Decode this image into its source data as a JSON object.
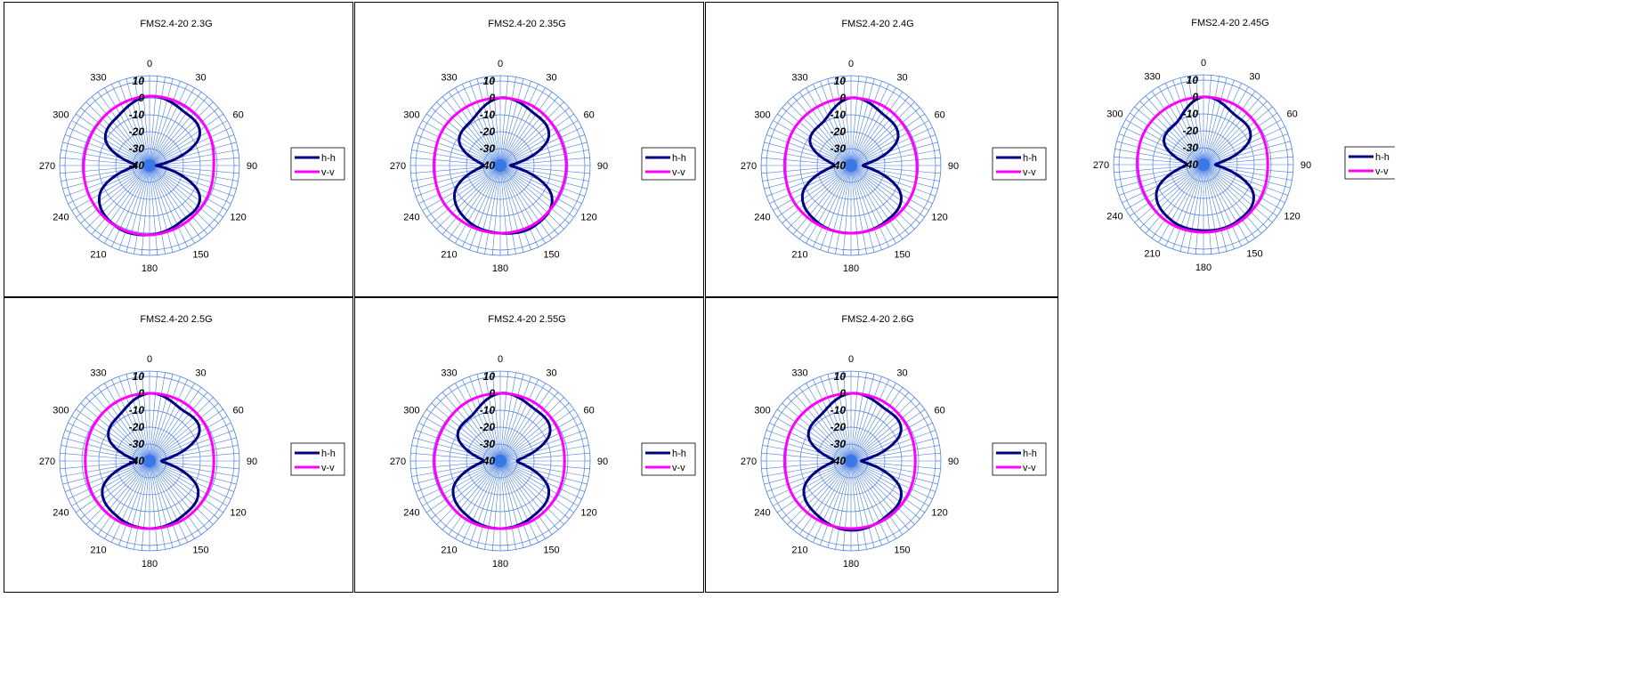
{
  "chart_data": [
    {
      "type": "polar-line",
      "title": "FMS2.4-20 2.3G",
      "angle_ticks": [
        "0",
        "30",
        "60",
        "90",
        "120",
        "150",
        "180",
        "210",
        "240",
        "270",
        "300",
        "330"
      ],
      "radial_ticks": [
        "10",
        "0",
        "-10",
        "-20",
        "-30",
        "-40"
      ],
      "radial_range": [
        -40,
        10
      ],
      "radial_step": 10,
      "angle_direction": "clockwise",
      "grid": true,
      "legend_position": "right",
      "colors": {
        "h-h": "#000080",
        "v-v": "#ff00ff"
      },
      "series": [
        {
          "name": "h-h",
          "angles": [
            0,
            30,
            60,
            90,
            120,
            150,
            180,
            210,
            240,
            270,
            300,
            330
          ],
          "values": [
            1,
            -2,
            -6,
            -36,
            -6,
            -2,
            1,
            1,
            -6,
            -32,
            -10,
            -5
          ]
        },
        {
          "name": "v-v",
          "angles": [
            0,
            30,
            60,
            90,
            120,
            150,
            180,
            210,
            240,
            270,
            300,
            330
          ],
          "values": [
            1,
            1,
            0,
            -2,
            -1,
            0,
            1,
            1,
            0,
            -1,
            -1,
            0
          ]
        }
      ]
    },
    {
      "type": "polar-line",
      "title": "FMS2.4-20 2.35G",
      "angle_ticks": [
        "0",
        "30",
        "60",
        "90",
        "120",
        "150",
        "180",
        "210",
        "240",
        "270",
        "300",
        "330"
      ],
      "radial_ticks": [
        "10",
        "0",
        "-10",
        "-20",
        "-30",
        "-40"
      ],
      "radial_range": [
        -40,
        10
      ],
      "radial_step": 10,
      "angle_direction": "clockwise",
      "grid": true,
      "legend_position": "right",
      "colors": {
        "h-h": "#000080",
        "v-v": "#ff00ff"
      },
      "series": [
        {
          "name": "h-h",
          "angles": [
            0,
            30,
            60,
            90,
            120,
            150,
            180,
            210,
            240,
            270,
            300,
            330
          ],
          "values": [
            0,
            -3,
            -7,
            -34,
            -5,
            1,
            0,
            -2,
            -9,
            -30,
            -12,
            -8
          ]
        },
        {
          "name": "v-v",
          "angles": [
            0,
            30,
            60,
            90,
            120,
            150,
            180,
            210,
            240,
            270,
            300,
            330
          ],
          "values": [
            0,
            0,
            -1,
            -1,
            -1,
            0,
            0,
            0,
            0,
            -1,
            0,
            0
          ]
        }
      ]
    },
    {
      "type": "polar-line",
      "title": "FMS2.4-20 2.4G",
      "angle_ticks": [
        "0",
        "30",
        "60",
        "90",
        "120",
        "150",
        "180",
        "210",
        "240",
        "270",
        "300",
        "330"
      ],
      "radial_ticks": [
        "10",
        "0",
        "-10",
        "-20",
        "-30",
        "-40"
      ],
      "radial_range": [
        -40,
        10
      ],
      "radial_step": 10,
      "angle_direction": "clockwise",
      "grid": true,
      "legend_position": "right",
      "colors": {
        "h-h": "#000080",
        "v-v": "#ff00ff"
      },
      "series": [
        {
          "name": "h-h",
          "angles": [
            0,
            30,
            60,
            90,
            120,
            150,
            180,
            210,
            240,
            270,
            300,
            330
          ],
          "values": [
            0,
            -4,
            -8,
            -33,
            -6,
            -1,
            0,
            -1,
            -7,
            -30,
            -12,
            -9
          ]
        },
        {
          "name": "v-v",
          "angles": [
            0,
            30,
            60,
            90,
            120,
            150,
            180,
            210,
            240,
            270,
            300,
            330
          ],
          "values": [
            0,
            0,
            -1,
            -1,
            0,
            0,
            0,
            0,
            0,
            -1,
            0,
            0
          ]
        }
      ]
    },
    {
      "type": "polar-line",
      "title": "FMS2.4-20 2.45G",
      "angle_ticks": [
        "0",
        "30",
        "60",
        "90",
        "120",
        "150",
        "180",
        "210",
        "240",
        "270",
        "300",
        "330"
      ],
      "radial_ticks": [
        "10",
        "0",
        "-10",
        "-20",
        "-30",
        "-40"
      ],
      "radial_range": [
        -40,
        10
      ],
      "radial_step": 10,
      "angle_direction": "clockwise",
      "grid": true,
      "legend_position": "right",
      "colors": {
        "h-h": "#000080",
        "v-v": "#ff00ff"
      },
      "series": [
        {
          "name": "h-h",
          "angles": [
            0,
            30,
            60,
            90,
            120,
            150,
            180,
            210,
            240,
            270,
            300,
            330
          ],
          "values": [
            0,
            -5,
            -8,
            -33,
            -6,
            -1,
            -1,
            -2,
            -8,
            -30,
            -13,
            -10
          ]
        },
        {
          "name": "v-v",
          "angles": [
            0,
            30,
            60,
            90,
            120,
            150,
            180,
            210,
            240,
            270,
            300,
            330
          ],
          "values": [
            0,
            0,
            -1,
            -2,
            -1,
            0,
            0,
            0,
            -1,
            -1,
            0,
            0
          ]
        }
      ]
    },
    {
      "type": "polar-line",
      "title": "FMS2.4-20 2.5G",
      "angle_ticks": [
        "0",
        "30",
        "60",
        "90",
        "120",
        "150",
        "180",
        "210",
        "240",
        "270",
        "300",
        "330"
      ],
      "radial_ticks": [
        "10",
        "0",
        "-10",
        "-20",
        "-30",
        "-40"
      ],
      "radial_range": [
        -40,
        10
      ],
      "radial_step": 10,
      "angle_direction": "clockwise",
      "grid": true,
      "legend_position": "right",
      "colors": {
        "h-h": "#000080",
        "v-v": "#ff00ff"
      },
      "series": [
        {
          "name": "h-h",
          "angles": [
            0,
            30,
            60,
            90,
            120,
            150,
            180,
            210,
            240,
            270,
            300,
            330
          ],
          "values": [
            0,
            -4,
            -6,
            -33,
            -7,
            -2,
            0,
            -2,
            -8,
            -32,
            -12,
            -7
          ]
        },
        {
          "name": "v-v",
          "angles": [
            0,
            30,
            60,
            90,
            120,
            150,
            180,
            210,
            240,
            270,
            300,
            330
          ],
          "values": [
            0,
            0,
            -1,
            -2,
            -1,
            0,
            0,
            0,
            -1,
            -2,
            -1,
            0
          ]
        }
      ]
    },
    {
      "type": "polar-line",
      "title": "FMS2.4-20 2.55G",
      "angle_ticks": [
        "0",
        "30",
        "60",
        "90",
        "120",
        "150",
        "180",
        "210",
        "240",
        "270",
        "300",
        "330"
      ],
      "radial_ticks": [
        "10",
        "0",
        "-10",
        "-20",
        "-30",
        "-40"
      ],
      "radial_range": [
        -40,
        10
      ],
      "radial_step": 10,
      "angle_direction": "clockwise",
      "grid": true,
      "legend_position": "right",
      "colors": {
        "h-h": "#000080",
        "v-v": "#ff00ff"
      },
      "series": [
        {
          "name": "h-h",
          "angles": [
            0,
            30,
            60,
            90,
            120,
            150,
            180,
            210,
            240,
            270,
            300,
            330
          ],
          "values": [
            0,
            -3,
            -6,
            -30,
            -7,
            -2,
            0,
            -2,
            -8,
            -30,
            -11,
            -8
          ]
        },
        {
          "name": "v-v",
          "angles": [
            0,
            30,
            60,
            90,
            120,
            150,
            180,
            210,
            240,
            270,
            300,
            330
          ],
          "values": [
            0,
            0,
            -1,
            -2,
            -1,
            0,
            0,
            0,
            -1,
            -1,
            -1,
            0
          ]
        }
      ]
    },
    {
      "type": "polar-line",
      "title": "FMS2.4-20 2.6G",
      "angle_ticks": [
        "0",
        "30",
        "60",
        "90",
        "120",
        "150",
        "180",
        "210",
        "240",
        "270",
        "300",
        "330"
      ],
      "radial_ticks": [
        "10",
        "0",
        "-10",
        "-20",
        "-30",
        "-40"
      ],
      "radial_range": [
        -40,
        10
      ],
      "radial_step": 10,
      "angle_direction": "clockwise",
      "grid": true,
      "legend_position": "right",
      "colors": {
        "h-h": "#000080",
        "v-v": "#ff00ff"
      },
      "series": [
        {
          "name": "h-h",
          "angles": [
            0,
            30,
            60,
            90,
            120,
            150,
            180,
            210,
            240,
            270,
            300,
            330
          ],
          "values": [
            0,
            -3,
            -6,
            -34,
            -6,
            -1,
            1,
            -2,
            -8,
            -30,
            -11,
            -7
          ]
        },
        {
          "name": "v-v",
          "angles": [
            0,
            30,
            60,
            90,
            120,
            150,
            180,
            210,
            240,
            270,
            300,
            330
          ],
          "values": [
            0,
            0,
            -1,
            -2,
            -1,
            0,
            0,
            0,
            0,
            -1,
            0,
            0
          ]
        }
      ]
    }
  ]
}
